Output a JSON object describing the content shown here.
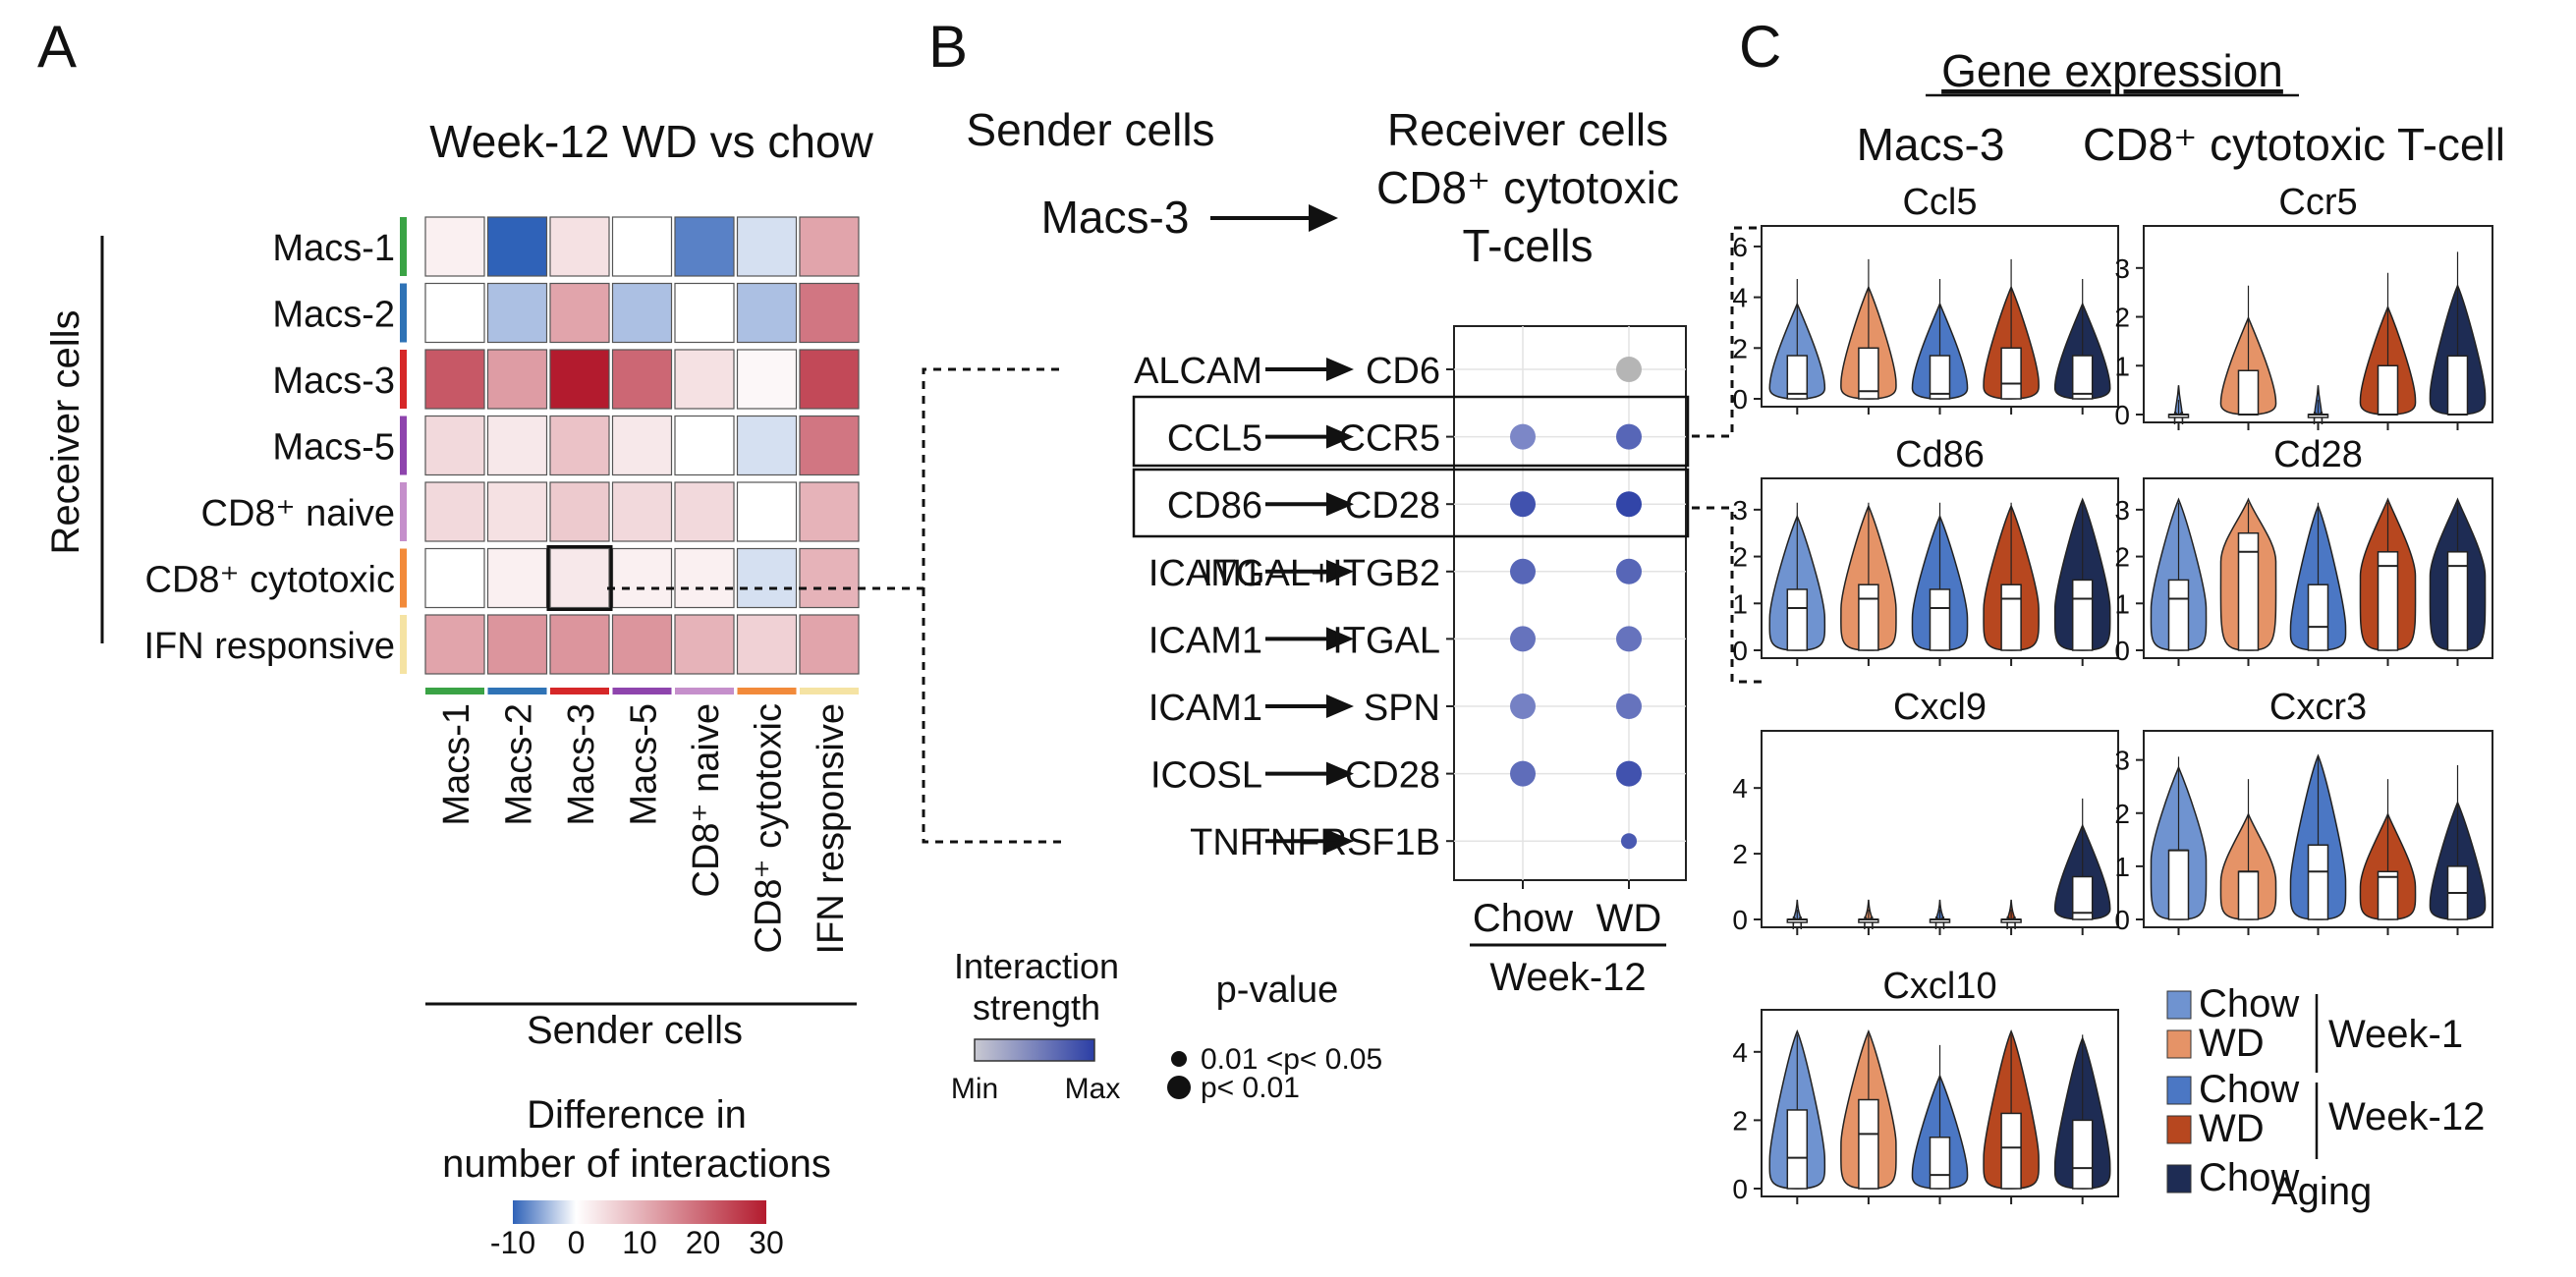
{
  "panel_a": {
    "label": "A",
    "title": "Week-12 WD vs chow",
    "y_axis_title": "Receiver cells",
    "x_axis_title": "Sender cells",
    "rows": [
      "Macs-1",
      "Macs-2",
      "Macs-3",
      "Macs-5",
      "CD8⁺ naive",
      "CD8⁺ cytotoxic",
      "IFN responsive"
    ],
    "columns": [
      "Macs-1",
      "Macs-2",
      "Macs-3",
      "Macs-5",
      "CD8⁺ naive",
      "CD8⁺ cytotoxic",
      "IFN responsive"
    ],
    "group_colors": [
      "#3aa345",
      "#2f73b6",
      "#d62728",
      "#8e44ad",
      "#c58fcb",
      "#f28a3a",
      "#f5e3a3"
    ],
    "legend": {
      "title_line1": "Difference in",
      "title_line2": "number of interactions",
      "ticks": [
        "-10",
        "0",
        "10",
        "20",
        "30"
      ],
      "colors": [
        "#2f62b8",
        "#ffffff",
        "#b31b2e"
      ]
    },
    "highlight_cell": {
      "row": "CD8⁺ cytotoxic",
      "column": "Macs-3"
    }
  },
  "chart_data": [
    {
      "type": "heatmap",
      "title": "Week-12 WD vs chow",
      "xlabel": "Sender cells",
      "ylabel": "Receiver cells",
      "x": [
        "Macs-1",
        "Macs-2",
        "Macs-3",
        "Macs-5",
        "CD8⁺ naive",
        "CD8⁺ cytotoxic",
        "IFN responsive"
      ],
      "y": [
        "Macs-1",
        "Macs-2",
        "Macs-3",
        "Macs-5",
        "CD8⁺ naive",
        "CD8⁺ cytotoxic",
        "IFN responsive"
      ],
      "zlim": [
        -10,
        30
      ],
      "values": [
        [
          2,
          -13,
          4,
          0,
          -8,
          -2,
          12
        ],
        [
          0,
          -4,
          12,
          -4,
          0,
          -4,
          18
        ],
        [
          22,
          13,
          30,
          20,
          4,
          1,
          24
        ],
        [
          5,
          3,
          8,
          3,
          0,
          -2,
          18
        ],
        [
          5,
          4,
          7,
          5,
          5,
          0,
          10
        ],
        [
          0,
          2,
          3,
          2,
          2,
          -2,
          10
        ],
        [
          12,
          14,
          14,
          14,
          10,
          6,
          12
        ]
      ]
    },
    {
      "type": "scatter",
      "xlabel": "Week-12",
      "categories": [
        "Chow",
        "WD"
      ],
      "pairs": [
        "ALCAM → CD6",
        "CCL5 → CCR5",
        "CD86 → CD28",
        "ICAM1 → ITGAL+ITGB2",
        "ICAM1 → ITGAL",
        "ICAM1 → SPN",
        "ICOSL → CD28",
        "TNF → TNFRSF1B"
      ],
      "strength_range": [
        "Min",
        "Max"
      ],
      "points": [
        {
          "pair": 0,
          "group": "WD",
          "strength": null,
          "p": "0.01 <p< 0.05"
        },
        {
          "pair": 1,
          "group": "Chow",
          "strength": 0.45,
          "p": "p< 0.01"
        },
        {
          "pair": 1,
          "group": "WD",
          "strength": 0.7,
          "p": "p< 0.01"
        },
        {
          "pair": 2,
          "group": "Chow",
          "strength": 0.85,
          "p": "p< 0.01"
        },
        {
          "pair": 2,
          "group": "WD",
          "strength": 0.95,
          "p": "p< 0.01"
        },
        {
          "pair": 3,
          "group": "Chow",
          "strength": 0.7,
          "p": "p< 0.01"
        },
        {
          "pair": 3,
          "group": "WD",
          "strength": 0.7,
          "p": "p< 0.01"
        },
        {
          "pair": 4,
          "group": "Chow",
          "strength": 0.6,
          "p": "p< 0.01"
        },
        {
          "pair": 4,
          "group": "WD",
          "strength": 0.6,
          "p": "p< 0.01"
        },
        {
          "pair": 5,
          "group": "Chow",
          "strength": 0.5,
          "p": "p< 0.01"
        },
        {
          "pair": 5,
          "group": "WD",
          "strength": 0.6,
          "p": "p< 0.01"
        },
        {
          "pair": 6,
          "group": "Chow",
          "strength": 0.65,
          "p": "p< 0.01"
        },
        {
          "pair": 6,
          "group": "WD",
          "strength": 0.85,
          "p": "p< 0.01"
        },
        {
          "pair": 7,
          "group": "WD",
          "strength": 0.8,
          "p": "0.01 <p< 0.05"
        }
      ]
    },
    {
      "type": "violin",
      "groups": [
        "Week-1 Chow",
        "Week-1 WD",
        "Week-12 Chow",
        "Week-12 WD",
        "Aging Chow"
      ],
      "panels": [
        {
          "gene": "Ccl5",
          "cell": "Macs-3",
          "ylim": [
            0,
            6.5
          ],
          "yticks": [
            0,
            2,
            4,
            6
          ],
          "medians": [
            0.2,
            0.3,
            0.2,
            0.6,
            0.2
          ],
          "q3": [
            1.7,
            2,
            1.7,
            2,
            1.7
          ]
        },
        {
          "gene": "Cd86",
          "cell": "Macs-3",
          "ylim": [
            0,
            3.5
          ],
          "yticks": [
            0,
            1,
            2,
            3
          ],
          "medians": [
            0.9,
            1.1,
            0.9,
            1.1,
            1.1
          ],
          "q3": [
            1.3,
            1.4,
            1.3,
            1.4,
            1.5
          ]
        },
        {
          "gene": "Cxcl9",
          "cell": "Macs-3",
          "ylim": [
            0,
            5.5
          ],
          "yticks": [
            0,
            2,
            4
          ],
          "medians": [
            0,
            0,
            0,
            0,
            0.2
          ],
          "q3": [
            0,
            0,
            0,
            0,
            1.3
          ]
        },
        {
          "gene": "Cxcl10",
          "cell": "Macs-3",
          "ylim": [
            0,
            5
          ],
          "yticks": [
            0,
            2,
            4
          ],
          "medians": [
            0.9,
            1.6,
            0.4,
            1.2,
            0.6
          ],
          "q3": [
            2.3,
            2.6,
            1.5,
            2.2,
            2
          ]
        },
        {
          "gene": "Ccr5",
          "cell": "CD8⁺ cytotoxic T-cell",
          "ylim": [
            0,
            3.7
          ],
          "yticks": [
            0,
            1,
            2,
            3
          ],
          "medians": [
            0,
            0,
            0,
            0,
            0
          ],
          "q3": [
            0,
            0.9,
            0,
            1,
            1.2
          ]
        },
        {
          "gene": "Cd28",
          "cell": "CD8⁺ cytotoxic T-cell",
          "ylim": [
            0,
            3.5
          ],
          "yticks": [
            0,
            1,
            2,
            3
          ],
          "medians": [
            1.1,
            2.1,
            0.5,
            1.8,
            1.8
          ],
          "q3": [
            1.5,
            2.5,
            1.4,
            2.1,
            2.1
          ]
        },
        {
          "gene": "Cxcr3",
          "cell": "CD8⁺ cytotoxic T-cell",
          "ylim": [
            0,
            3.4
          ],
          "yticks": [
            0,
            1,
            2,
            3
          ],
          "medians": [
            1.3,
            0.9,
            0.9,
            0.8,
            0.5
          ],
          "q3": [
            1.3,
            0.9,
            1.4,
            0.9,
            1
          ]
        }
      ]
    }
  ],
  "panel_b": {
    "label": "B",
    "sender_title": "Sender cells",
    "receiver_title_1": "Receiver cells",
    "receiver_title_2": "CD8⁺ cytotoxic",
    "receiver_title_3": "T-cells",
    "sender_name": "Macs-3",
    "pairs": [
      {
        "ligand": "ALCAM",
        "receptor": "CD6"
      },
      {
        "ligand": "CCL5",
        "receptor": "CCR5"
      },
      {
        "ligand": "CD86",
        "receptor": "CD28"
      },
      {
        "ligand": "ICAM1",
        "receptor": "ITGAL+ITGB2"
      },
      {
        "ligand": "ICAM1",
        "receptor": "ITGAL"
      },
      {
        "ligand": "ICAM1",
        "receptor": "SPN"
      },
      {
        "ligand": "ICOSL",
        "receptor": "CD28"
      },
      {
        "ligand": "TNF",
        "receptor": "TNFRSF1B"
      }
    ],
    "x_categories": [
      "Chow",
      "WD"
    ],
    "x_group_label": "Week-12",
    "strength_title_1": "Interaction",
    "strength_title_2": "strength",
    "strength_min": "Min",
    "strength_max": "Max",
    "pvalue_title": "p-value",
    "pvalue_small": "0.01 <p< 0.05",
    "pvalue_large": "p< 0.01",
    "colors": {
      "low": "#bfc3e2",
      "high": "#2b3ea5",
      "na": "#b5b5b5"
    }
  },
  "panel_c": {
    "label": "C",
    "title": "Gene expression",
    "left_header": "Macs-3",
    "right_header": "CD8⁺ cytotoxic T-cell",
    "legend": [
      {
        "name": "Chow",
        "color": "#6f93d0"
      },
      {
        "name": "WD",
        "color": "#e59367"
      },
      {
        "name": "Chow",
        "color": "#4b77c4"
      },
      {
        "name": "WD",
        "color": "#b7471f"
      },
      {
        "name": "Chow",
        "color": "#1e2c54"
      }
    ],
    "legend_groups": [
      "Week-1",
      "Week-12",
      "Aging"
    ]
  }
}
